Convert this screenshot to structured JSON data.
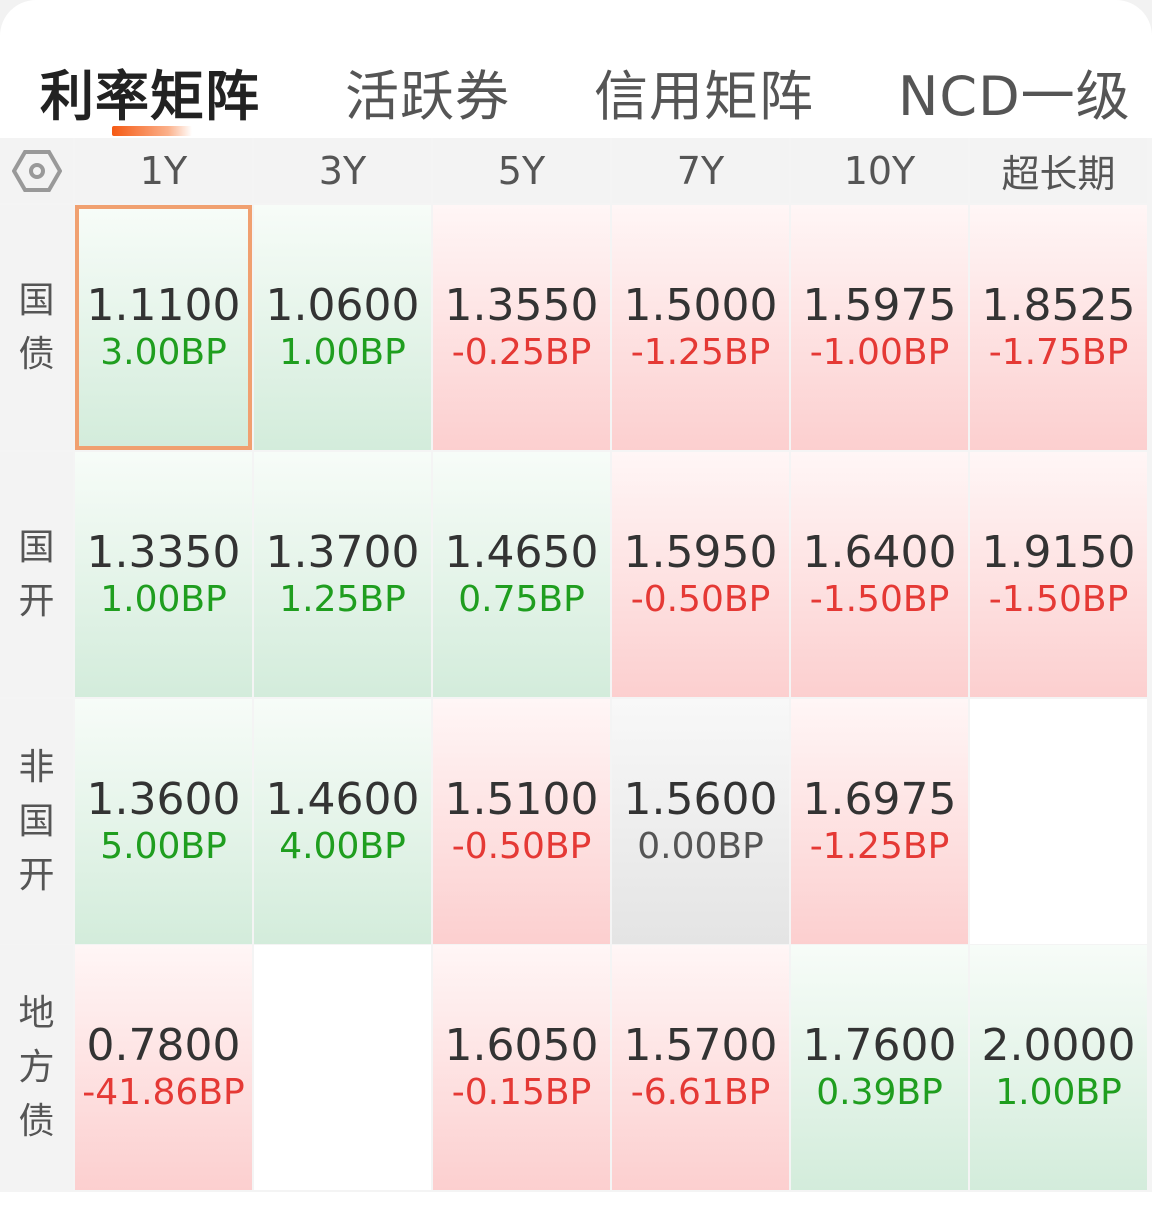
{
  "tabs": [
    {
      "label": "利率矩阵",
      "active": true
    },
    {
      "label": "活跃券"
    },
    {
      "label": "信用矩阵"
    },
    {
      "label": "NCD一级"
    }
  ],
  "settings_icon": "hexagon-settings-icon",
  "columns": [
    "1Y",
    "3Y",
    "5Y",
    "7Y",
    "10Y",
    "超长期"
  ],
  "colors": {
    "up": "#e53935",
    "down": "#1f9e1f",
    "accent": "#f55a14"
  },
  "rows": [
    {
      "label": "国债",
      "cells": [
        {
          "value": "1.1100",
          "change": "3.00BP",
          "dir": "down",
          "selected": true
        },
        {
          "value": "1.0600",
          "change": "1.00BP",
          "dir": "down"
        },
        {
          "value": "1.3550",
          "change": "-0.25BP",
          "dir": "up"
        },
        {
          "value": "1.5000",
          "change": "-1.25BP",
          "dir": "up"
        },
        {
          "value": "1.5975",
          "change": "-1.00BP",
          "dir": "up"
        },
        {
          "value": "1.8525",
          "change": "-1.75BP",
          "dir": "up"
        }
      ]
    },
    {
      "label": "国开",
      "cells": [
        {
          "value": "1.3350",
          "change": "1.00BP",
          "dir": "down"
        },
        {
          "value": "1.3700",
          "change": "1.25BP",
          "dir": "down"
        },
        {
          "value": "1.4650",
          "change": "0.75BP",
          "dir": "down"
        },
        {
          "value": "1.5950",
          "change": "-0.50BP",
          "dir": "up"
        },
        {
          "value": "1.6400",
          "change": "-1.50BP",
          "dir": "up"
        },
        {
          "value": "1.9150",
          "change": "-1.50BP",
          "dir": "up"
        }
      ]
    },
    {
      "label": "非国开",
      "cells": [
        {
          "value": "1.3600",
          "change": "5.00BP",
          "dir": "down"
        },
        {
          "value": "1.4600",
          "change": "4.00BP",
          "dir": "down"
        },
        {
          "value": "1.5100",
          "change": "-0.50BP",
          "dir": "up"
        },
        {
          "value": "1.5600",
          "change": "0.00BP",
          "dir": "flat"
        },
        {
          "value": "1.6975",
          "change": "-1.25BP",
          "dir": "up"
        },
        null
      ]
    },
    {
      "label": "地方债",
      "cells": [
        {
          "value": "0.7800",
          "change": "-41.86BP",
          "dir": "up"
        },
        null,
        {
          "value": "1.6050",
          "change": "-0.15BP",
          "dir": "up"
        },
        {
          "value": "1.5700",
          "change": "-6.61BP",
          "dir": "up"
        },
        {
          "value": "1.7600",
          "change": "0.39BP",
          "dir": "down"
        },
        {
          "value": "2.0000",
          "change": "1.00BP",
          "dir": "down"
        }
      ]
    }
  ]
}
